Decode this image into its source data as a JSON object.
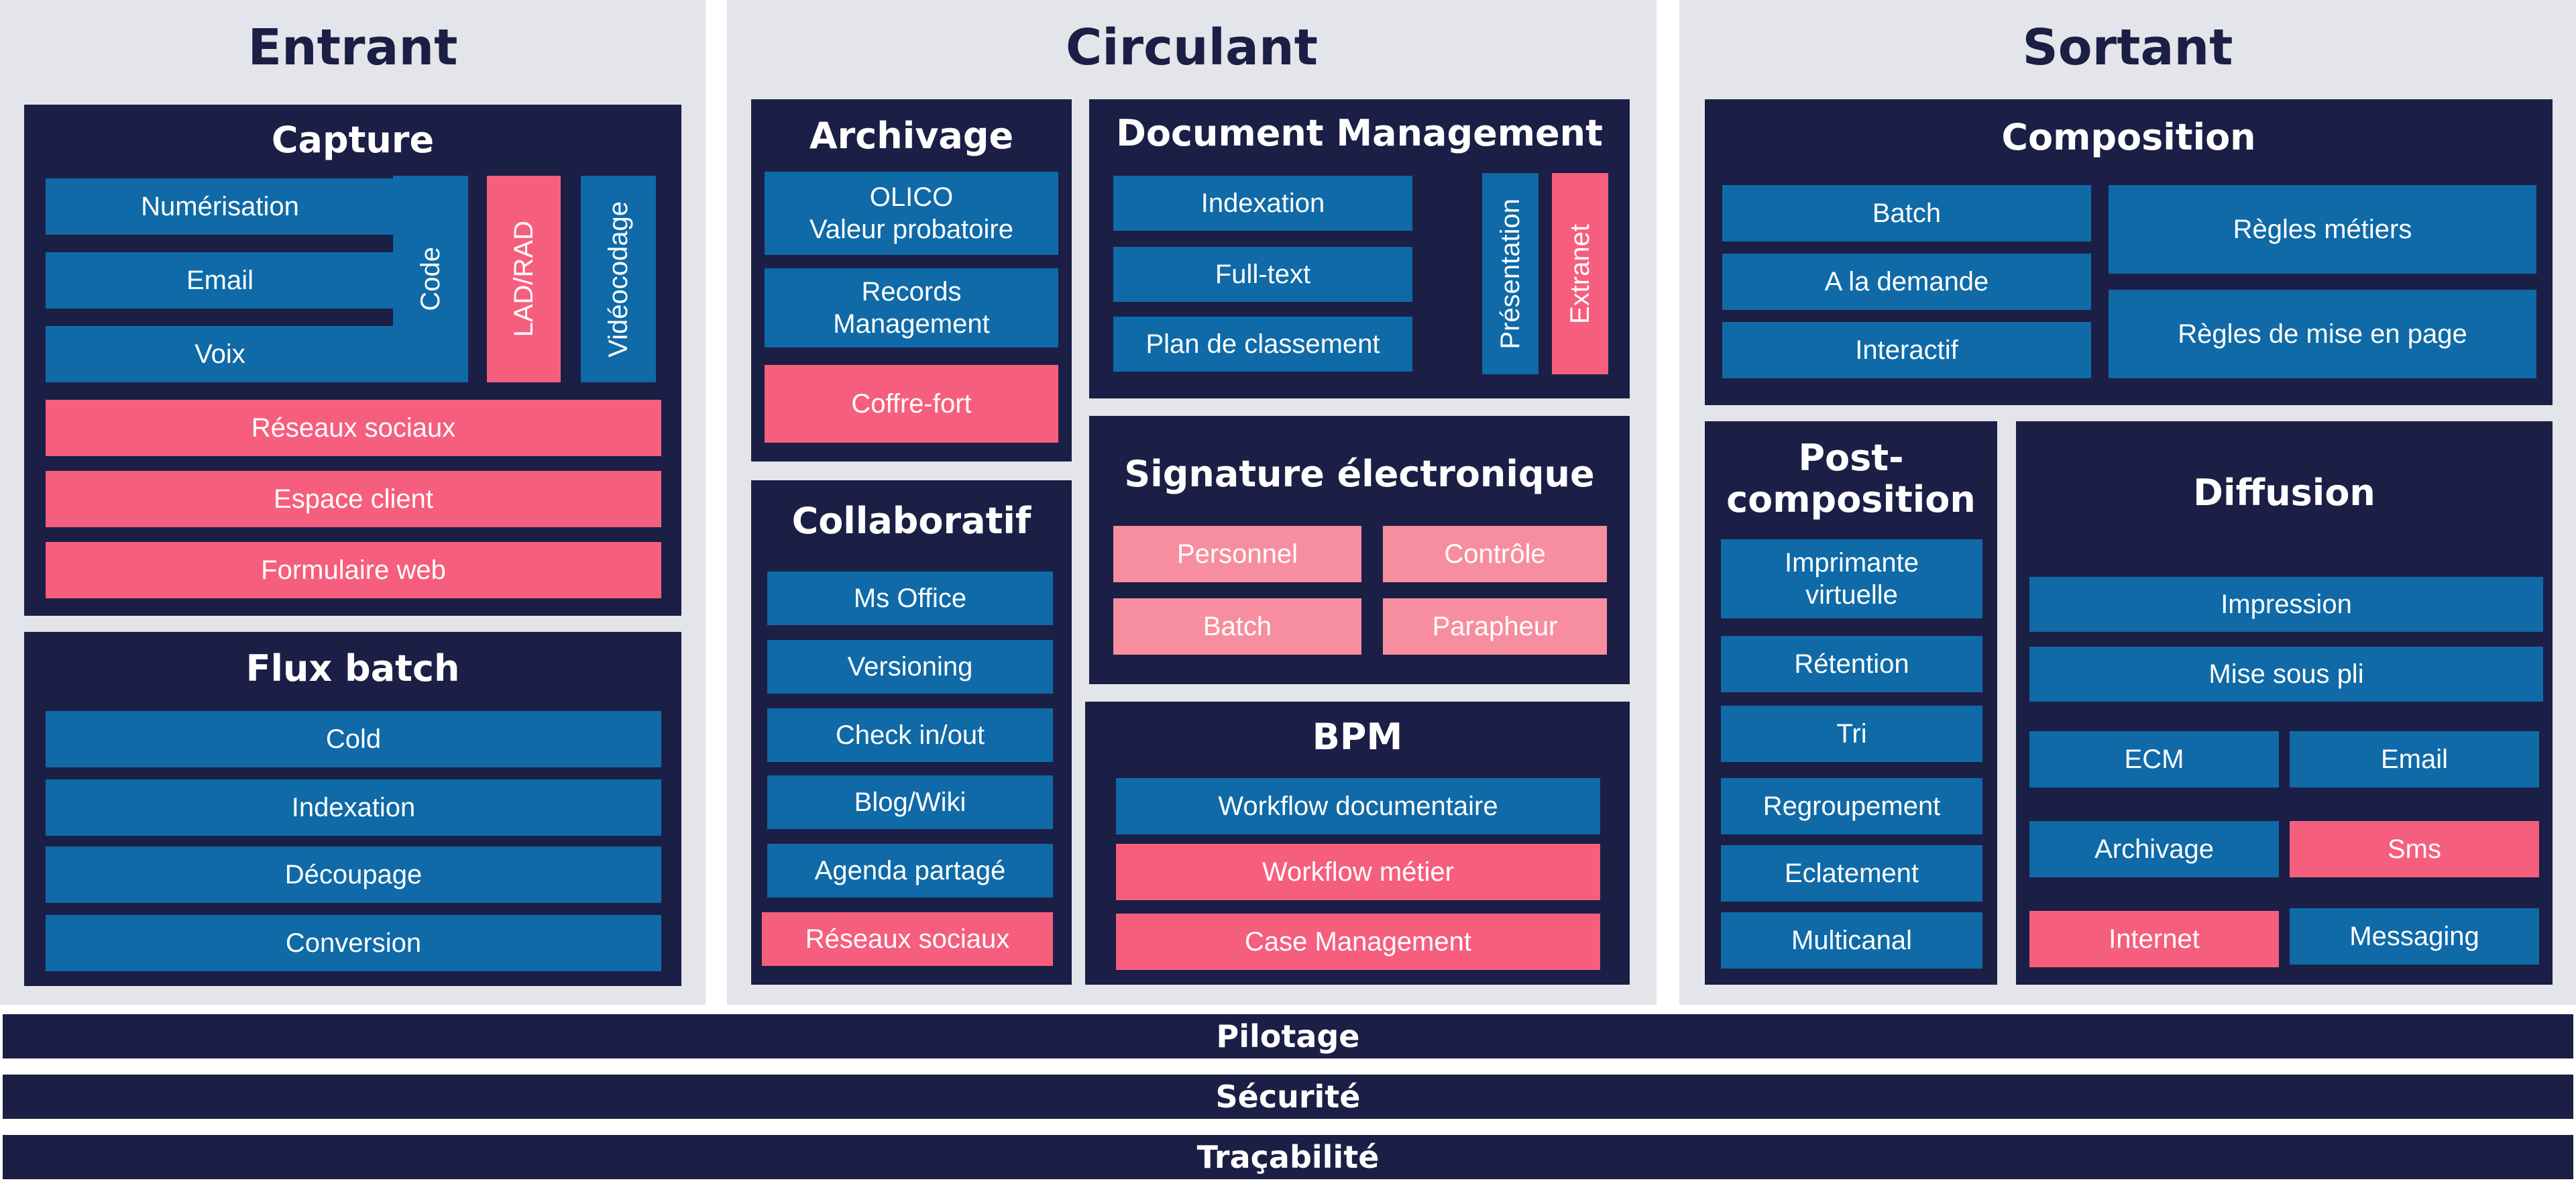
{
  "columns": {
    "entrant": "Entrant",
    "circulant": "Circulant",
    "sortant": "Sortant"
  },
  "capture": {
    "title": "Capture",
    "numerisation": "Numérisation",
    "email": "Email",
    "voix": "Voix",
    "code": "Code",
    "lad_rad": "LAD/RAD",
    "videocodage": "Vidéocodage",
    "reseaux_sociaux": "Réseaux sociaux",
    "espace_client": "Espace client",
    "formulaire_web": "Formulaire web"
  },
  "flux_batch": {
    "title": "Flux batch",
    "items": [
      "Cold",
      "Indexation",
      "Découpage",
      "Conversion"
    ]
  },
  "archivage": {
    "title": "Archivage",
    "olico": "OLICO",
    "valeur_probatoire": "Valeur probatoire",
    "records": "Records",
    "management": "Management",
    "coffre_fort": "Coffre-fort"
  },
  "collaboratif": {
    "title": "Collaboratif",
    "items": [
      "Ms Office",
      "Versioning",
      "Check in/out",
      "Blog/Wiki",
      "Agenda partagé",
      "Réseaux sociaux"
    ]
  },
  "document_management": {
    "title": "Document Management",
    "items": [
      "Indexation",
      "Full-text",
      "Plan de classement"
    ],
    "presentation": "Présentation",
    "extranet": "Extranet"
  },
  "signature": {
    "title": "Signature électronique",
    "items": [
      "Personnel",
      "Contrôle",
      "Batch",
      "Parapheur"
    ]
  },
  "bpm": {
    "title": "BPM",
    "items": [
      "Workflow documentaire",
      "Workflow métier",
      "Case Management"
    ]
  },
  "composition": {
    "title": "Composition",
    "left": [
      "Batch",
      "A la demande",
      "Interactif"
    ],
    "right": [
      "Règles métiers",
      "Règles de mise en page"
    ]
  },
  "post_composition": {
    "title_line1": "Post-",
    "title_line2": "composition",
    "imprimante": "Imprimante",
    "virtuelle": "virtuelle",
    "items": [
      "Rétention",
      "Tri",
      "Regroupement",
      "Eclatement",
      "Multicanal"
    ]
  },
  "diffusion": {
    "title": "Diffusion",
    "impression": "Impression",
    "mise_sous_pli": "Mise sous pli",
    "ecm": "ECM",
    "email": "Email",
    "archivage": "Archivage",
    "sms": "Sms",
    "internet": "Internet",
    "messaging": "Messaging"
  },
  "bars": {
    "pilotage": "Pilotage",
    "securite": "Sécurité",
    "tracabilite": "Traçabilité"
  },
  "colors": {
    "navy": "#1b1f45",
    "blue": "#0f6aa7",
    "pink": "#f65e7e",
    "light_pink": "#f78e9f",
    "column_bg": "#e4e5ea"
  }
}
